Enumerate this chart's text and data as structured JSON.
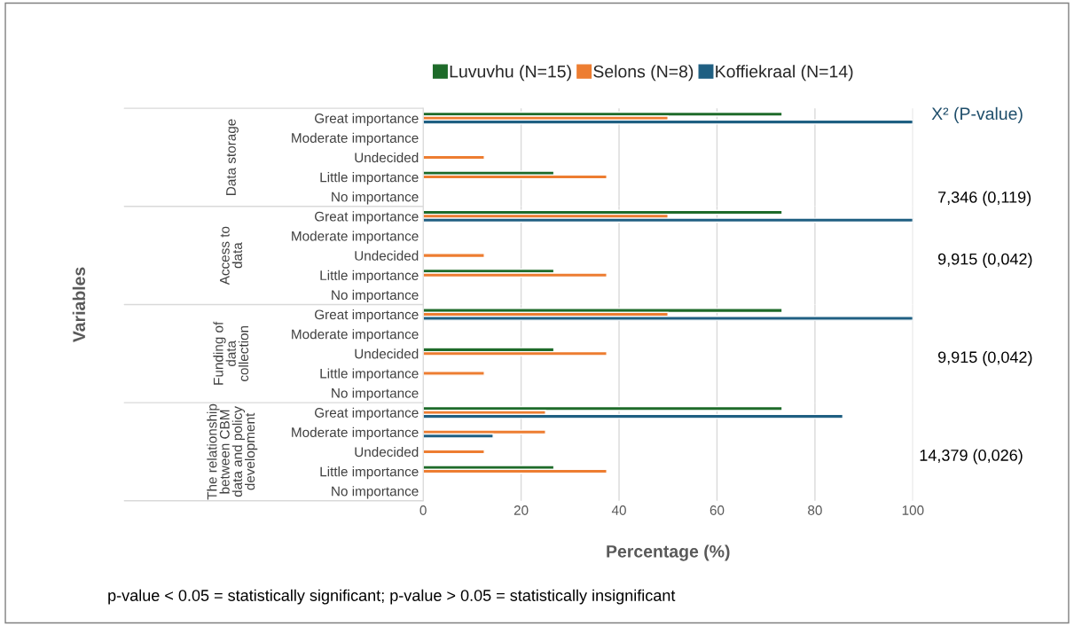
{
  "chart_data": [
    {
      "type": "bar",
      "orientation": "horizontal",
      "title": "Data storage",
      "ylabel": "Variables",
      "legend": "top",
      "grid": "x",
      "tick_labels": "y",
      "categories": [
        "Great importance",
        "Moderate importance",
        "Undecided",
        "Little importance",
        "No importance"
      ],
      "xlim": [
        0,
        100
      ],
      "xticks": [
        0,
        20,
        40,
        60,
        80,
        100
      ],
      "series": [
        {
          "name": "Luvuvhu (N=15)",
          "color": "#1e6b2a",
          "values": [
            73.3,
            null,
            null,
            26.7,
            null
          ]
        },
        {
          "name": "Selons (N=8)",
          "color": "#ed7d31",
          "values": [
            50,
            null,
            12.5,
            37.5,
            null
          ]
        },
        {
          "name": "Koffiekraal (N=14)",
          "color": "#1f5f82",
          "values": [
            100,
            null,
            null,
            null,
            null
          ]
        }
      ],
      "annotations": [
        "X² (P-value)",
        "7,346 (0,119)"
      ]
    },
    {
      "type": "bar",
      "orientation": "horizontal",
      "title": "Access to\ndata",
      "grid": "x",
      "tick_labels": "y",
      "categories": [
        "Great importance",
        "Moderate importance",
        "Undecided",
        "Little importance",
        "No importance"
      ],
      "xlim": [
        0,
        100
      ],
      "xticks": [
        0,
        20,
        40,
        60,
        80,
        100
      ],
      "series": [
        {
          "color": "#1e6b2a",
          "values": [
            73.3,
            null,
            null,
            26.7,
            null
          ]
        },
        {
          "color": "#ed7d31",
          "values": [
            50,
            null,
            12.5,
            37.5,
            null
          ]
        },
        {
          "color": "#1f5f82",
          "values": [
            100,
            null,
            null,
            null,
            null
          ]
        }
      ],
      "annotations": [
        "9,915 (0,042)"
      ]
    },
    {
      "type": "bar",
      "orientation": "horizontal",
      "title": "Funding of\ndata\ncollection",
      "grid": "x",
      "tick_labels": "y",
      "categories": [
        "Great importance",
        "Moderate importance",
        "Undecided",
        "Little importance",
        "No importance"
      ],
      "xlim": [
        0,
        100
      ],
      "xticks": [
        0,
        20,
        40,
        60,
        80,
        100
      ],
      "series": [
        {
          "color": "#1e6b2a",
          "values": [
            73.3,
            null,
            26.7,
            null,
            null
          ]
        },
        {
          "color": "#ed7d31",
          "values": [
            50,
            null,
            37.5,
            12.5,
            null
          ]
        },
        {
          "color": "#1f5f82",
          "values": [
            100,
            null,
            null,
            null,
            null
          ]
        }
      ],
      "annotations": [
        "9,915 (0,042)"
      ]
    },
    {
      "type": "bar",
      "orientation": "horizontal",
      "title": "The relationship\nbetween CBM\ndata and policy\ndevelopment",
      "xlabel": "Percentage (%)",
      "grid": "x",
      "categories": [
        "Great importance",
        "Moderate importance",
        "Undecided",
        "Little importance",
        "No importance"
      ],
      "xlim": [
        0,
        100
      ],
      "xticks": [
        0,
        20,
        40,
        60,
        80,
        100
      ],
      "series": [
        {
          "color": "#1e6b2a",
          "values": [
            73.3,
            null,
            null,
            26.7,
            null
          ]
        },
        {
          "color": "#ed7d31",
          "values": [
            25,
            25,
            12.5,
            37.5,
            null
          ]
        },
        {
          "color": "#1f5f82",
          "values": [
            85.7,
            14.3,
            null,
            null,
            null
          ]
        }
      ],
      "annotations": [
        "14,379 (0,026)",
        "p-value < 0.05 = statistically significant; p-value > 0.05 = statistically insignificant"
      ]
    }
  ]
}
